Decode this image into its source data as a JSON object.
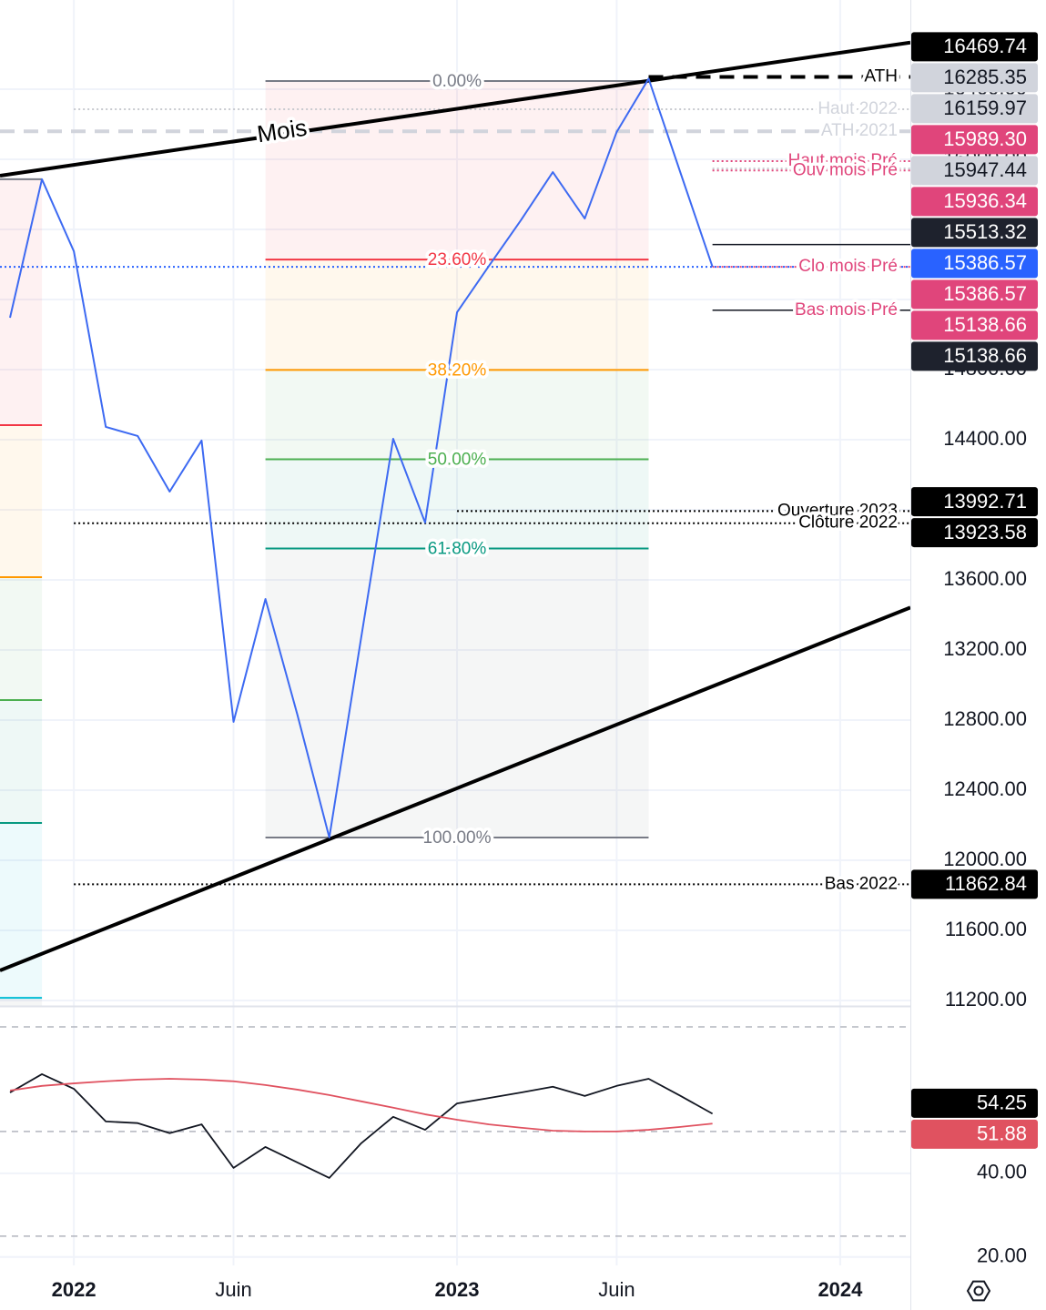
{
  "chart_data": [
    {
      "type": "line",
      "x": [
        "2021-11",
        "2021-12",
        "2022-01",
        "2022-02",
        "2022-03",
        "2022-04",
        "2022-05",
        "2022-06",
        "2022-07",
        "2022-08",
        "2022-09",
        "2022-10",
        "2022-11",
        "2022-12",
        "2023-01",
        "2023-02",
        "2023-03",
        "2023-04",
        "2023-05",
        "2023-06",
        "2023-07",
        "2023-08",
        "2023-09"
      ],
      "series": [
        {
          "color": "#3d6af2",
          "values": [
            15096,
            15886,
            15475,
            14473,
            14421,
            14104,
            14395,
            12790,
            13491,
            12831,
            12130,
            13273,
            14405,
            13927,
            15127,
            15392,
            15652,
            15927,
            15662,
            16156,
            16460,
            15922,
            15386.57
          ]
        }
      ],
      "xlim": [
        "2021-11",
        "2024-02"
      ],
      "xticks": [
        {
          "value": "2022-01",
          "label": "2022"
        },
        {
          "value": "2022-06",
          "label": "Juin"
        },
        {
          "value": "2023-01",
          "label": "2023"
        },
        {
          "value": "2023-06",
          "label": "Juin"
        },
        {
          "value": "2024-01",
          "label": "2024"
        }
      ],
      "ylim": [
        11169,
        16909
      ],
      "yticks": [
        {
          "value": 11200,
          "label": "11200.00"
        },
        {
          "value": 11600,
          "label": "11600.00"
        },
        {
          "value": 12000,
          "label": "12000.00"
        },
        {
          "value": 12400,
          "label": "12400.00"
        },
        {
          "value": 12800,
          "label": "12800.00"
        },
        {
          "value": 13200,
          "label": "13200.00"
        },
        {
          "value": 13600,
          "label": "13600.00"
        },
        {
          "value": 14000,
          "label": "14000.00"
        },
        {
          "value": 14400,
          "label": "14400.00"
        },
        {
          "value": 14800,
          "label": "14800.00"
        },
        {
          "value": 15200,
          "label": "15200.00"
        },
        {
          "value": 15600,
          "label": "15600.00"
        },
        {
          "value": 16000,
          "label": "16000.00"
        },
        {
          "value": 16400,
          "label": "16400.00"
        }
      ],
      "grid": true,
      "trendlines": [
        {
          "name": "Mois",
          "x": [
            "2021-11",
            "2024-01"
          ],
          "values": [
            15915,
            16608
          ],
          "color": "#000000"
        },
        {
          "x": [
            "2021-11",
            "2024-01"
          ],
          "values": [
            11394,
            13283
          ],
          "color": "#000000"
        }
      ],
      "fibonacci": [
        {
          "x": [
            "2021-06",
            "2021-12"
          ],
          "high": 15886,
          "low": 9943,
          "levels": [
            0,
            23.6,
            38.2,
            50,
            61.8,
            78.6,
            100
          ],
          "colors": [
            "#787b86",
            "#f23645",
            "#ff9800",
            "#4caf50",
            "#089981",
            "#00bcd4",
            "#787b86"
          ]
        },
        {
          "x": [
            "2022-07",
            "2023-07"
          ],
          "high": 16447,
          "low": 12130,
          "levels": [
            {
              "value": 0,
              "label": "0.00%"
            },
            {
              "value": 23.6,
              "label": "23.60%"
            },
            {
              "value": 38.2,
              "label": "38.20%"
            },
            {
              "value": 50,
              "label": "50.00%"
            },
            {
              "value": 61.8,
              "label": "61.80%"
            },
            {
              "value": 100,
              "label": "100.00%"
            }
          ],
          "colors": [
            "#787b86",
            "#f23645",
            "#ff9800",
            "#4caf50",
            "#089981",
            "#787b86"
          ]
        }
      ],
      "levels": [
        {
          "name": "ATH",
          "value": 16469.74,
          "label": "16469.74",
          "style": "dashed",
          "line_color": "#000000",
          "badge_color": "#000000",
          "text_color": "#ffffff",
          "start": "2023-07"
        },
        {
          "name": "Haut 2022",
          "value": 16285.35,
          "label": "16285.35",
          "style": "dotted",
          "line_color": "#c8cad0",
          "badge_color": "#d1d4dc",
          "text_color": "#131722",
          "start": "2022-01"
        },
        {
          "name": "ATH 2021",
          "value": 16159.97,
          "label": "16159.97",
          "style": "dashed",
          "line_color": "#d1d4dc",
          "badge_color": "#d1d4dc",
          "text_color": "#131722"
        },
        {
          "name": "Haut mois Pré",
          "value": 15989.3,
          "label": "15989.30",
          "style": "dotted",
          "line_color": "#e0457b",
          "badge_color": "#e0457b",
          "text_color": "#ffffff",
          "start": "2023-09"
        },
        {
          "name": null,
          "value": 15947.44,
          "label": "15947.44",
          "style": "dotted",
          "line_color": "#c8cad0",
          "badge_color": "#d1d4dc",
          "text_color": "#131722",
          "start": "2023-09"
        },
        {
          "name": "Ouv mois Pré",
          "value": 15936.34,
          "label": "15936.34",
          "style": "dotted",
          "line_color": "#e0457b",
          "badge_color": "#e0457b",
          "text_color": "#ffffff",
          "start": "2023-09"
        },
        {
          "name": null,
          "value": 15513.32,
          "label": "15513.32",
          "style": "solid",
          "line_color": "#131722",
          "badge_color": "#1e222d",
          "text_color": "#ffffff",
          "start": "2023-09"
        },
        {
          "name": null,
          "value": 15386.57,
          "label": "15386.57",
          "style": "dotted",
          "line_color": "#2962ff",
          "badge_color": "#2962ff",
          "text_color": "#ffffff"
        },
        {
          "name": "Clo mois Pré",
          "value": 15386.57,
          "label": "15386.57",
          "style": "dotted",
          "line_color": "#e0457b",
          "badge_color": "#e0457b",
          "text_color": "#ffffff",
          "start": "2023-09"
        },
        {
          "name": "Bas mois Pré",
          "value": 15138.66,
          "label": "15138.66",
          "style": "solid",
          "line_color": "#131722",
          "badge_color": "#e0457b",
          "text_color": "#ffffff",
          "start": "2023-09"
        },
        {
          "name": null,
          "value": 15138.66,
          "label": "15138.66",
          "style": "none",
          "line_color": "#131722",
          "badge_color": "#1e222d",
          "text_color": "#ffffff"
        },
        {
          "name": "Ouverture 2023",
          "value": 13992.71,
          "label": "13992.71",
          "style": "dotted",
          "line_color": "#000000",
          "badge_color": "#000000",
          "text_color": "#ffffff",
          "start": "2023-01"
        },
        {
          "name": "Clôture 2022",
          "value": 13923.58,
          "label": "13923.58",
          "style": "dotted",
          "line_color": "#000000",
          "badge_color": "#000000",
          "text_color": "#ffffff",
          "start": "2022-01"
        },
        {
          "name": "Bas 2022",
          "value": 11862.84,
          "label": "11862.84",
          "style": "dotted",
          "line_color": "#000000",
          "badge_color": "#000000",
          "text_color": "#ffffff",
          "start": "2022-01"
        }
      ]
    },
    {
      "type": "line",
      "x": [
        "2021-11",
        "2021-12",
        "2022-01",
        "2022-02",
        "2022-03",
        "2022-04",
        "2022-05",
        "2022-06",
        "2022-07",
        "2022-08",
        "2022-09",
        "2022-10",
        "2022-11",
        "2022-12",
        "2023-01",
        "2023-02",
        "2023-03",
        "2023-04",
        "2023-05",
        "2023-06",
        "2023-07",
        "2023-08",
        "2023-09"
      ],
      "series": [
        {
          "color": "#131722",
          "values": [
            59.3,
            63.7,
            60.2,
            52.4,
            52.0,
            49.6,
            51.7,
            41.3,
            46.3,
            42.6,
            38.9,
            47.2,
            53.5,
            50.4,
            56.7,
            58.0,
            59.3,
            60.7,
            58.5,
            60.9,
            62.6,
            58.5,
            54.25
          ],
          "last_label": "54.25",
          "badge_color": "#000000"
        },
        {
          "color": "#e05260",
          "values": [
            59.8,
            60.9,
            61.5,
            62.0,
            62.4,
            62.6,
            62.4,
            62.0,
            61.1,
            60.0,
            58.7,
            57.2,
            55.7,
            54.1,
            52.8,
            51.7,
            50.9,
            50.2,
            50.0,
            50.0,
            50.4,
            51.1,
            51.88
          ],
          "last_label": "51.88",
          "badge_color": "#e05260"
        }
      ],
      "ylim": [
        18,
        80
      ],
      "yticks": [
        {
          "value": 20,
          "label": "20.00"
        },
        {
          "value": 40,
          "label": "40.00"
        }
      ],
      "hlines": [
        75,
        50,
        25
      ],
      "grid": true
    }
  ]
}
